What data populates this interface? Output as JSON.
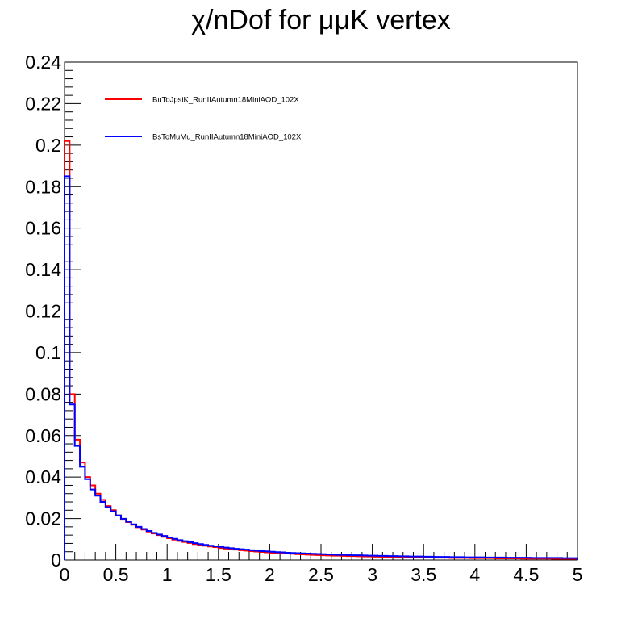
{
  "chart_data": {
    "type": "line",
    "title": "χ/nDof for μμK vertex",
    "xlabel": "",
    "ylabel": "",
    "xlim": [
      0,
      5
    ],
    "ylim": [
      0,
      0.24
    ],
    "x_ticks": [
      "0",
      "0.5",
      "1",
      "1.5",
      "2",
      "2.5",
      "3",
      "3.5",
      "4",
      "4.5",
      "5"
    ],
    "y_ticks": [
      "0",
      "0.02",
      "0.04",
      "0.06",
      "0.08",
      "0.1",
      "0.12",
      "0.14",
      "0.16",
      "0.18",
      "0.2",
      "0.22",
      "0.24"
    ],
    "bin_width": 0.05,
    "grid": false,
    "legend_position": "top-left",
    "series": [
      {
        "name": "BuToJpsiK_RunIIAutumn18MiniAOD_102X",
        "color": "#ff0000",
        "values": [
          0.202,
          0.08,
          0.058,
          0.047,
          0.04,
          0.036,
          0.032,
          0.029,
          0.026,
          0.024,
          0.0215,
          0.0198,
          0.0183,
          0.017,
          0.0158,
          0.0147,
          0.0137,
          0.0128,
          0.012,
          0.0112,
          0.0105,
          0.0098,
          0.0092,
          0.0087,
          0.0082,
          0.0077,
          0.0073,
          0.0069,
          0.0065,
          0.0062,
          0.0058,
          0.0055,
          0.0052,
          0.005,
          0.0047,
          0.0045,
          0.0043,
          0.0041,
          0.0039,
          0.0037,
          0.0035,
          0.0034,
          0.0032,
          0.0031,
          0.003,
          0.0028,
          0.0027,
          0.0026,
          0.0025,
          0.0024,
          0.0023,
          0.0022,
          0.0021,
          0.0021,
          0.002,
          0.0019,
          0.0019,
          0.0018,
          0.0017,
          0.0017,
          0.0016,
          0.0016,
          0.0015,
          0.0015,
          0.0014,
          0.0014,
          0.0013,
          0.0013,
          0.0013,
          0.0012,
          0.0012,
          0.0012,
          0.0011,
          0.0011,
          0.0011,
          0.001,
          0.001,
          0.001,
          0.001,
          0.0009,
          0.0009,
          0.0009,
          0.0009,
          0.0009,
          0.0008,
          0.0008,
          0.0008,
          0.0008,
          0.0008,
          0.0007,
          0.0007,
          0.0007,
          0.0007,
          0.0007,
          0.0007,
          0.0006,
          0.0006,
          0.0006,
          0.0006,
          0.0006
        ]
      },
      {
        "name": "BsToMuMu_RunIIAutumn18MiniAOD_102X",
        "color": "#0000ff",
        "values": [
          0.185,
          0.075,
          0.055,
          0.045,
          0.039,
          0.034,
          0.031,
          0.028,
          0.0255,
          0.0235,
          0.0215,
          0.0199,
          0.0185,
          0.0172,
          0.016,
          0.015,
          0.014,
          0.0131,
          0.0123,
          0.0116,
          0.0109,
          0.0102,
          0.0096,
          0.0091,
          0.0086,
          0.0081,
          0.0077,
          0.0073,
          0.0069,
          0.0066,
          0.0063,
          0.006,
          0.0057,
          0.0054,
          0.0052,
          0.005,
          0.0047,
          0.0045,
          0.0043,
          0.0042,
          0.004,
          0.0038,
          0.0037,
          0.0035,
          0.0034,
          0.0033,
          0.0032,
          0.0031,
          0.003,
          0.0029,
          0.0028,
          0.0027,
          0.0026,
          0.0025,
          0.0025,
          0.0024,
          0.0023,
          0.0023,
          0.0022,
          0.0021,
          0.0021,
          0.002,
          0.002,
          0.0019,
          0.0019,
          0.0018,
          0.0018,
          0.0017,
          0.0017,
          0.0017,
          0.0016,
          0.0016,
          0.0015,
          0.0015,
          0.0015,
          0.0014,
          0.0014,
          0.0014,
          0.0013,
          0.0013,
          0.0013,
          0.0013,
          0.0012,
          0.0012,
          0.0012,
          0.0012,
          0.0011,
          0.0011,
          0.0011,
          0.0011,
          0.0011,
          0.001,
          0.001,
          0.001,
          0.001,
          0.001,
          0.001,
          0.0009,
          0.0009,
          0.0009
        ]
      }
    ]
  }
}
